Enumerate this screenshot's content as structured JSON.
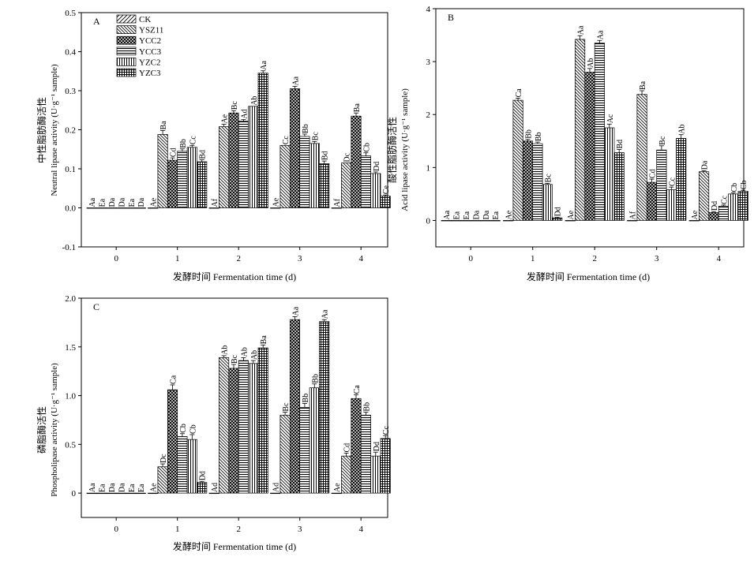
{
  "x_label": "发酵时间 Fermentation time (d)",
  "legend": [
    {
      "name": "CK",
      "pattern": "p-ck"
    },
    {
      "name": "YSZ11",
      "pattern": "p-ysz11"
    },
    {
      "name": "YCC2",
      "pattern": "p-ycc2"
    },
    {
      "name": "YCC3",
      "pattern": "p-ycc3"
    },
    {
      "name": "YZC2",
      "pattern": "p-yzc2"
    },
    {
      "name": "YZC3",
      "pattern": "p-yzc3"
    }
  ],
  "chart_data": [
    {
      "type": "bar",
      "panel": "A",
      "ylabel_cn": "中性脂肪酶活性",
      "ylabel_en": "Neutral lipase activity (U·g⁻¹ sample)",
      "xlabel": "发酵时间 Fermentation time (d)",
      "categories": [
        "0",
        "1",
        "2",
        "3",
        "4"
      ],
      "ylim": [
        -0.1,
        0.5
      ],
      "yticks": [
        -0.1,
        0.0,
        0.1,
        0.2,
        0.3,
        0.4,
        0.5
      ],
      "ytick_labels": [
        "-0.1",
        "0.0",
        "0.1",
        "0.2",
        "0.3",
        "0.4",
        "0.5"
      ],
      "legend_position": "top-left",
      "series": [
        {
          "name": "CK",
          "values": [
            0,
            0,
            0,
            0,
            0
          ],
          "errors": [
            0,
            0,
            0,
            0,
            0
          ],
          "labels": [
            "Aa",
            "Ae",
            "Af",
            "Ae",
            "Af"
          ]
        },
        {
          "name": "YSZ11",
          "values": [
            0,
            0.188,
            0.208,
            0.16,
            0.115
          ],
          "errors": [
            0,
            0.01,
            0.006,
            0,
            0
          ],
          "labels": [
            "Ea",
            "Ba",
            "Ae",
            "Cc",
            "Dc"
          ]
        },
        {
          "name": "YCC2",
          "values": [
            0,
            0.122,
            0.243,
            0.305,
            0.235
          ],
          "errors": [
            0,
            0.006,
            0.006,
            0.006,
            0.008
          ],
          "labels": [
            "Da",
            "Cd",
            "Bc",
            "Aa",
            "Ba"
          ]
        },
        {
          "name": "YCC3",
          "values": [
            0,
            0.145,
            0.222,
            0.183,
            0.133
          ],
          "errors": [
            0,
            0.006,
            0.004,
            0.006,
            0.008
          ],
          "labels": [
            "Da",
            "Bb",
            "Ad",
            "Bb",
            "Cb"
          ]
        },
        {
          "name": "YZC2",
          "values": [
            0,
            0.155,
            0.26,
            0.165,
            0.088
          ],
          "errors": [
            0,
            0.005,
            0,
            0.005,
            0.004
          ],
          "labels": [
            "Ea",
            "Cc",
            "Ab",
            "Bc",
            "Dd"
          ]
        },
        {
          "name": "YZC3",
          "values": [
            0,
            0.118,
            0.345,
            0.113,
            0.03
          ],
          "errors": [
            0,
            0.005,
            0.006,
            0.007,
            0.003
          ],
          "labels": [
            "Da",
            "Bd",
            "Aa",
            "Bd",
            "Ce"
          ]
        }
      ]
    },
    {
      "type": "bar",
      "panel": "B",
      "ylabel_cn": "酸性脂肪酶活性",
      "ylabel_en": "Acid lipase activity (U·g⁻¹ sample)",
      "xlabel": "发酵时间 Fermentation time (d)",
      "categories": [
        "0",
        "1",
        "2",
        "3",
        "4"
      ],
      "ylim": [
        -0.5,
        4
      ],
      "yticks": [
        0,
        1,
        2,
        3,
        4
      ],
      "ytick_labels": [
        "0",
        "1",
        "2",
        "3",
        "4"
      ],
      "legend_position": "none",
      "series": [
        {
          "name": "CK",
          "values": [
            0,
            0,
            0,
            0,
            0
          ],
          "errors": [
            0,
            0,
            0,
            0,
            0
          ],
          "labels": [
            "Aa",
            "Ae",
            "Ae",
            "Af",
            "Ae"
          ]
        },
        {
          "name": "YSZ11",
          "values": [
            0,
            2.27,
            3.42,
            2.38,
            0.92
          ],
          "errors": [
            0,
            0.04,
            0.07,
            0.07,
            0.02
          ],
          "labels": [
            "Ea",
            "Ca",
            "Aa",
            "Ba",
            "Da"
          ]
        },
        {
          "name": "YCC2",
          "values": [
            0,
            1.5,
            2.8,
            0.72,
            0.15
          ],
          "errors": [
            0,
            0.03,
            0.07,
            0.06,
            0.02
          ],
          "labels": [
            "Ea",
            "Bb",
            "Ab",
            "Cd",
            "Dd"
          ]
        },
        {
          "name": "YCC3",
          "values": [
            0,
            1.45,
            3.35,
            1.33,
            0.27
          ],
          "errors": [
            0,
            0.03,
            0.05,
            0.08,
            0.02
          ],
          "labels": [
            "Da",
            "Bb",
            "Aa",
            "Bc",
            "Cc"
          ]
        },
        {
          "name": "YZC2",
          "values": [
            0,
            0.68,
            1.75,
            0.58,
            0.5
          ],
          "errors": [
            0,
            0.02,
            0.07,
            0.05,
            0.02
          ],
          "labels": [
            "Da",
            "Bc",
            "Ac",
            "Cc",
            "Cb"
          ]
        },
        {
          "name": "YZC3",
          "values": [
            0,
            0.05,
            1.28,
            1.55,
            0.55
          ],
          "errors": [
            0,
            0.01,
            0.06,
            0.07,
            0.02
          ],
          "labels": [
            "Ea",
            "Dd",
            "Bd",
            "Ab",
            "Cb"
          ]
        }
      ]
    },
    {
      "type": "bar",
      "panel": "C",
      "ylabel_cn": "磷脂酶活性",
      "ylabel_en": "Phospholipase activity (U·g⁻¹ sample)",
      "xlabel": "发酵时间 Fermentation time (d)",
      "categories": [
        "0",
        "1",
        "2",
        "3",
        "4"
      ],
      "ylim": [
        -0.25,
        2.0
      ],
      "yticks": [
        0,
        0.5,
        1.0,
        1.5,
        2.0
      ],
      "ytick_labels": [
        "0",
        "0.5",
        "1.0",
        "1.5",
        "2.0"
      ],
      "legend_position": "none",
      "series": [
        {
          "name": "CK",
          "values": [
            0,
            0,
            0,
            0,
            0
          ],
          "errors": [
            0,
            0,
            0,
            0,
            0
          ],
          "labels": [
            "Aa",
            "Ae",
            "Ad",
            "Ad",
            "Ae"
          ]
        },
        {
          "name": "YSZ11",
          "values": [
            0,
            0.27,
            1.39,
            0.8,
            0.38
          ],
          "errors": [
            0,
            0.03,
            0.02,
            0.03,
            0.03
          ],
          "labels": [
            "Ea",
            "Dc",
            "Ab",
            "Bc",
            "Cd"
          ]
        },
        {
          "name": "YCC2",
          "values": [
            0,
            1.06,
            1.28,
            1.78,
            0.97
          ],
          "errors": [
            0,
            0.05,
            0.04,
            0.03,
            0.04
          ],
          "labels": [
            "Da",
            "Ca",
            "Bc",
            "Aa",
            "Ca"
          ]
        },
        {
          "name": "YCC3",
          "values": [
            0,
            0.58,
            1.36,
            0.88,
            0.8
          ],
          "errors": [
            0,
            0.03,
            0.03,
            0.04,
            0.03
          ],
          "labels": [
            "Da",
            "Cb",
            "Ab",
            "Bb",
            "Bb"
          ]
        },
        {
          "name": "YZC2",
          "values": [
            0,
            0.55,
            1.33,
            1.08,
            0.38
          ],
          "errors": [
            0,
            0.05,
            0.03,
            0.04,
            0.04
          ],
          "labels": [
            "Ea",
            "Cb",
            "Ab",
            "Bb",
            "Dd"
          ]
        },
        {
          "name": "YZC3",
          "values": [
            0,
            0.11,
            1.49,
            1.76,
            0.56
          ],
          "errors": [
            0,
            0.01,
            0.03,
            0.02,
            0.03
          ],
          "labels": [
            "Ea",
            "Dd",
            "Ba",
            "Aa",
            "Cc"
          ]
        }
      ]
    }
  ]
}
